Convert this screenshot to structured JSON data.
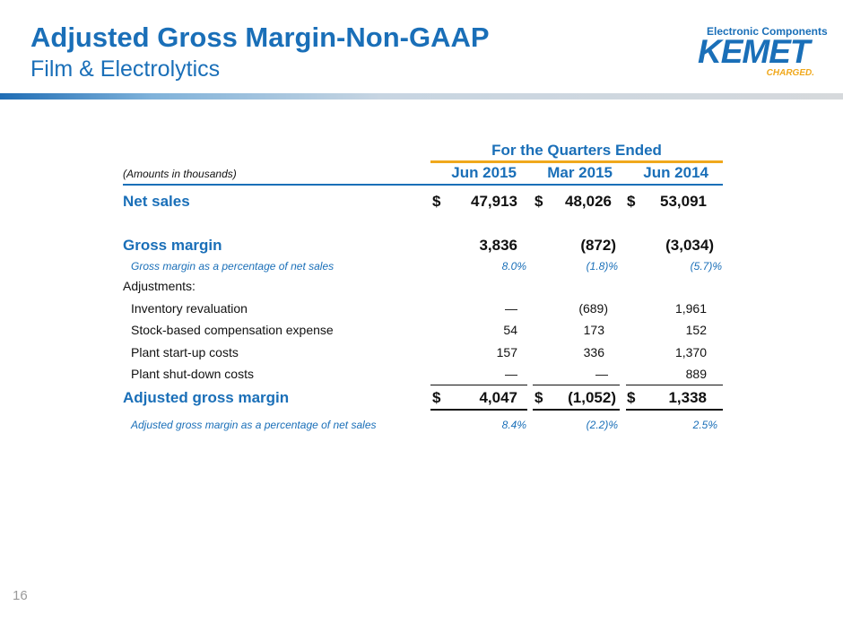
{
  "header": {
    "title": "Adjusted Gross Margin-Non-GAAP",
    "subtitle": "Film & Electrolytics",
    "page_number": "16"
  },
  "logo": {
    "top_text": "Electronic Components",
    "main_text": "KEMET",
    "tagline": "CHARGED."
  },
  "colors": {
    "brand_blue": "#1a6fb8",
    "accent_gold": "#f0a81c"
  },
  "table": {
    "group_header": "For the Quarters Ended",
    "amounts_note": "(Amounts in thousands)",
    "columns": [
      "Jun 2015",
      "Mar 2015",
      "Jun 2014"
    ],
    "currency_symbol": "$",
    "net_sales": {
      "label": "Net sales",
      "values": [
        "47,913",
        "48,026",
        "53,091"
      ]
    },
    "gross_margin": {
      "label": "Gross margin",
      "values": [
        "3,836",
        "(872)",
        "(3,034)"
      ]
    },
    "gross_margin_pct": {
      "label": "Gross margin as a percentage of net sales",
      "values": [
        "8.0%",
        "(1.8)%",
        "(5.7)%"
      ]
    },
    "adjustments_label": "Adjustments:",
    "adjustments": [
      {
        "label": "Inventory revaluation",
        "values": [
          "—",
          "(689)",
          "1,961"
        ]
      },
      {
        "label": "Stock-based compensation expense",
        "values": [
          "54",
          "173",
          "152"
        ]
      },
      {
        "label": "Plant start-up costs",
        "values": [
          "157",
          "336",
          "1,370"
        ]
      },
      {
        "label": "Plant shut-down costs",
        "values": [
          "—",
          "—",
          "889"
        ]
      }
    ],
    "adjusted_gross_margin": {
      "label": "Adjusted gross margin",
      "values": [
        "4,047",
        "(1,052)",
        "1,338"
      ]
    },
    "adjusted_gross_margin_pct": {
      "label": "Adjusted gross margin as a percentage of net sales",
      "values": [
        "8.4%",
        "(2.2)%",
        "2.5%"
      ]
    }
  }
}
